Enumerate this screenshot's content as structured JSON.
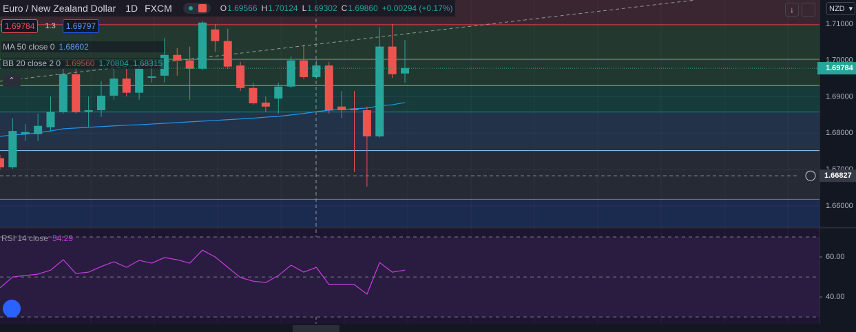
{
  "header": {
    "title": "Euro / New Zealand Dollar",
    "interval": "1D",
    "source": "FXCM",
    "ohlc": [
      {
        "key": "O",
        "value": "1.69566"
      },
      {
        "key": "H",
        "value": "1.70124"
      },
      {
        "key": "L",
        "value": "1.69302"
      },
      {
        "key": "C",
        "value": "1.69860"
      }
    ],
    "change": "+0.00294 (+0.17%)",
    "sell": "1.69784",
    "spread": "1.3",
    "buy": "1.69797",
    "currency": "NZD"
  },
  "chart_data": [
    {
      "type": "candlestick",
      "up_color": "#26a69a",
      "down_color": "#ef5350",
      "open": [
        1.6731,
        1.6706,
        1.6797,
        1.6797,
        1.6816,
        1.6858,
        1.6962,
        1.6859,
        1.6863,
        1.6903,
        1.695,
        1.6911,
        1.6952,
        1.6958,
        1.7015,
        1.7,
        1.6977,
        1.7085,
        1.7053,
        1.6986,
        1.6924,
        1.6884,
        1.6895,
        1.6928,
        1.7,
        1.6954,
        1.6986,
        1.6873,
        1.6867,
        1.6863,
        1.6791,
        1.7038,
        1.6964
      ],
      "high": [
        1.674,
        1.6841,
        1.6825,
        1.6854,
        1.6901,
        1.6977,
        1.6977,
        1.6901,
        1.6943,
        1.6977,
        1.6977,
        1.6986,
        1.7005,
        1.7062,
        1.7034,
        1.7038,
        1.7109,
        1.71,
        1.7087,
        1.6996,
        1.6939,
        1.6901,
        1.6939,
        1.7011,
        1.7043,
        1.7,
        1.6996,
        1.6916,
        1.6916,
        1.6873,
        1.7091,
        1.71,
        1.7056
      ],
      "low": [
        1.67,
        1.6702,
        1.6778,
        1.6778,
        1.6806,
        1.6854,
        1.6854,
        1.6816,
        1.6844,
        1.6892,
        1.6901,
        1.6892,
        1.6939,
        1.6939,
        1.6958,
        1.6892,
        1.6973,
        1.7024,
        1.6977,
        1.6916,
        1.6878,
        1.6859,
        1.6854,
        1.6924,
        1.6949,
        1.6949,
        1.6854,
        1.6841,
        1.6693,
        1.6653,
        1.6788,
        1.6952,
        1.6939
      ],
      "close": [
        1.6706,
        1.6806,
        1.6803,
        1.682,
        1.6859,
        1.6962,
        1.6858,
        1.6863,
        1.6903,
        1.695,
        1.6911,
        1.6977,
        1.6956,
        1.7015,
        1.7,
        1.6977,
        1.7104,
        1.7053,
        1.6983,
        1.6924,
        1.6882,
        1.6873,
        1.6928,
        1.7,
        1.6954,
        1.6986,
        1.6863,
        1.6863,
        1.6863,
        1.6791,
        1.7038,
        1.6962,
        1.6979
      ],
      "series": [
        {
          "name": "MA 50 close 0",
          "color": "#2196f3",
          "values": [
            1.6791,
            1.6795,
            1.6797,
            1.6801,
            1.6806,
            1.6812,
            1.6814,
            1.6816,
            1.6818,
            1.682,
            1.6822,
            1.6823,
            1.6825,
            1.6827,
            1.6829,
            1.6831,
            1.6833,
            1.6835,
            1.6837,
            1.6839,
            1.6841,
            1.6844,
            1.6846,
            1.685,
            1.6854,
            1.6859,
            1.6863,
            1.6865,
            1.6867,
            1.6869,
            1.6875,
            1.6878,
            1.6884
          ]
        }
      ],
      "legend": [
        {
          "name": "MA 50 close 0",
          "values": [
            {
              "text": "1.68602",
              "color": "#5b9cf6"
            }
          ]
        },
        {
          "name": "BB 20 close 2 0",
          "values": [
            {
              "text": "1.69560",
              "color": "#a1584a"
            },
            {
              "text": "1.70804",
              "color": "#26a69a"
            },
            {
              "text": "1.68315",
              "color": "#26a69a"
            }
          ]
        }
      ],
      "levels": [
        {
          "value": 1.7098,
          "color": "#f23645",
          "fill": "#3a2630"
        },
        {
          "value": 1.7003,
          "color": "#4caf50",
          "fill": "#23392f"
        },
        {
          "value": 1.6931,
          "color": "#8bc34a",
          "fill": "#20382f"
        },
        {
          "value": 1.6858,
          "color": "#089981",
          "fill": "#173a3a"
        },
        {
          "value": 1.6752,
          "color": "#90caf9",
          "fill": "#213249"
        },
        {
          "value": 1.6618,
          "color": "#787b86",
          "fill": "#262a34"
        }
      ],
      "last_price": 1.69784,
      "crosshair_price": 1.66827,
      "ylim": [
        1.6543,
        1.7166
      ],
      "yticks": [
        {
          "value": 1.71,
          "label": "1.71000"
        },
        {
          "value": 1.7,
          "label": "1.70000"
        },
        {
          "value": 1.69,
          "label": "1.69000"
        },
        {
          "value": 1.68,
          "label": "1.68000"
        },
        {
          "value": 1.67,
          "label": "1.67000"
        },
        {
          "value": 1.66,
          "label": "1.66000"
        }
      ]
    },
    {
      "type": "line",
      "title": "RSI 14 close",
      "current": "54.29",
      "series": [
        {
          "name": "RSI",
          "color": "#c53fe0",
          "values": [
            44.5,
            50.0,
            50.7,
            51.4,
            53.4,
            58.6,
            51.7,
            52.4,
            55.2,
            57.6,
            54.8,
            58.3,
            56.9,
            59.7,
            58.6,
            56.9,
            63.4,
            60.0,
            54.8,
            49.7,
            47.9,
            47.2,
            50.7,
            55.9,
            52.4,
            54.8,
            46.2,
            46.2,
            46.2,
            41.4,
            57.2,
            52.4,
            53.4
          ]
        }
      ],
      "levels": [
        70,
        50,
        30
      ],
      "ylim": [
        26.6,
        73.1
      ],
      "yticks": [
        {
          "value": 60,
          "label": "60.00"
        },
        {
          "value": 40,
          "label": "40.00"
        }
      ]
    }
  ]
}
